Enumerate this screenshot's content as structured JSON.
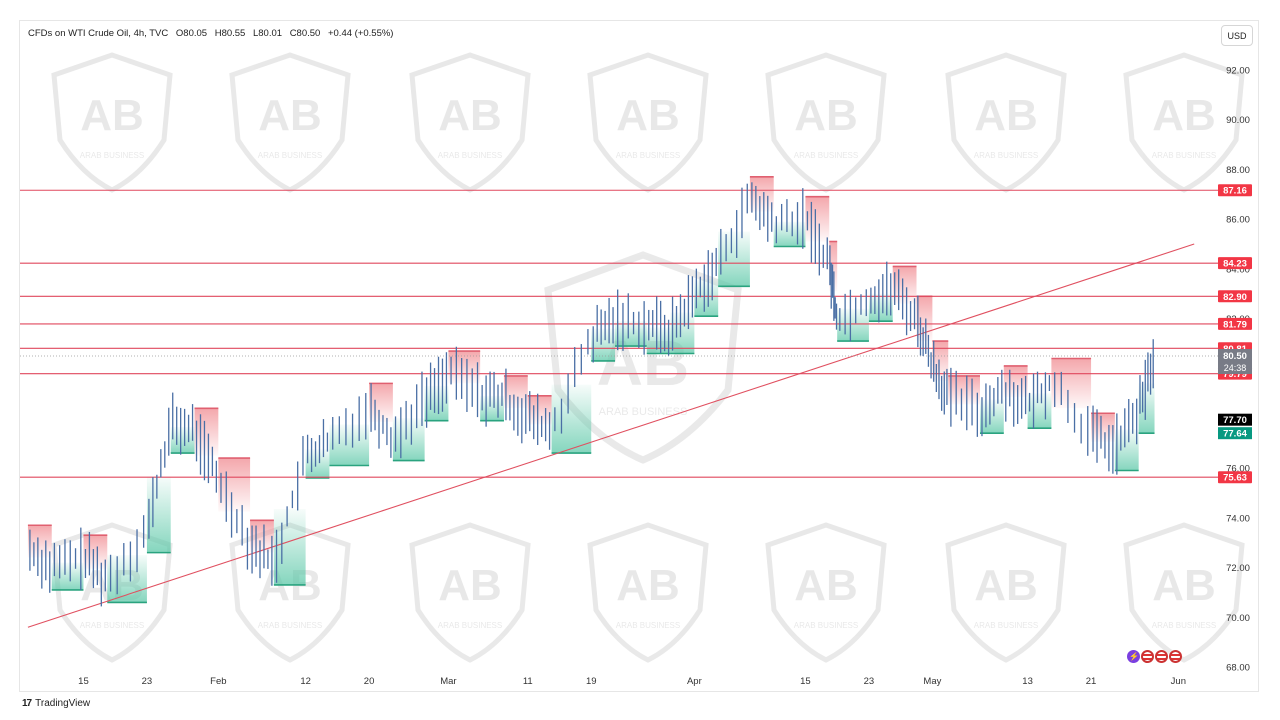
{
  "header": {
    "symbol": "CFDs on WTI Crude Oil, 4h, TVC",
    "open": "O80.05",
    "high": "H80.55",
    "low": "L80.01",
    "close": "C80.50",
    "change": "+0.44 (+0.55%)"
  },
  "currency_button": "USD",
  "brand_label": "TradingView",
  "brand_logo": "17",
  "watermark": {
    "logo_text": "ARAB BUSINESS",
    "monogram": "AB"
  },
  "colors": {
    "resistance_line": "#e0485e",
    "trendline": "#e05060",
    "bull_fill": "#5cc8a8",
    "bear_fill": "#f08a90",
    "candle": "#4a6fa5",
    "price_tag_bg": "#787b86",
    "label_red": "#f23645",
    "label_black": "#000000",
    "label_green": "#089981"
  },
  "chart_data": {
    "type": "line",
    "instrument": "CFDs on WTI Crude Oil",
    "timeframe": "4h",
    "y_axis": {
      "range": [
        67,
        94
      ],
      "ticks": [
        "92.00",
        "90.00",
        "88.00",
        "86.00",
        "84.00",
        "82.00",
        "80.00",
        "78.00",
        "76.00",
        "74.00",
        "72.00",
        "70.00",
        "68.00"
      ]
    },
    "x_axis": {
      "ticks": [
        "15",
        "23",
        "Feb",
        "12",
        "20",
        "Mar",
        "11",
        "19",
        "Apr",
        "15",
        "23",
        "May",
        "13",
        "21",
        "Jun"
      ]
    },
    "horizontal_levels": [
      {
        "value": 87.16,
        "label": "87.16"
      },
      {
        "value": 84.23,
        "label": "84.23"
      },
      {
        "value": 82.9,
        "label": "82.90"
      },
      {
        "value": 81.79,
        "label": "81.79"
      },
      {
        "value": 80.81,
        "label": "80.81"
      },
      {
        "value": 79.79,
        "label": "79.79"
      },
      {
        "value": 75.63,
        "label": "75.63"
      }
    ],
    "current_price": {
      "value": 80.5,
      "label": "80.50",
      "countdown": "24:38"
    },
    "indicator_labels": [
      {
        "value": 77.7,
        "label": "77.70",
        "style": "black"
      },
      {
        "value": 77.64,
        "label": "77.64",
        "style": "green"
      }
    ],
    "trendline": {
      "from": {
        "x": "Jan 8",
        "y": 69.6
      },
      "to": {
        "x": "Jun 3",
        "y": 85.0
      }
    },
    "price_path": {
      "x": [
        "Jan 8",
        "Jan 11",
        "Jan 15",
        "Jan 18",
        "Jan 23",
        "Jan 26",
        "Jan 29",
        "Feb 1",
        "Feb 5",
        "Feb 8",
        "Feb 12",
        "Feb 15",
        "Feb 20",
        "Feb 23",
        "Feb 27",
        "Mar 1",
        "Mar 5",
        "Mar 8",
        "Mar 11",
        "Mar 14",
        "Mar 19",
        "Mar 22",
        "Mar 26",
        "Mar 29",
        "Apr 1",
        "Apr 4",
        "Apr 8",
        "Apr 11",
        "Apr 15",
        "Apr 18",
        "Apr 19",
        "Apr 23",
        "Apr 26",
        "Apr 29",
        "May 1",
        "May 3",
        "May 7",
        "May 10",
        "May 13",
        "May 16",
        "May 21",
        "May 24",
        "May 27",
        "May 29"
      ],
      "close": [
        72.8,
        72.0,
        72.4,
        71.5,
        73.5,
        77.8,
        77.5,
        75.5,
        73.0,
        72.2,
        76.5,
        77.0,
        78.5,
        77.2,
        78.8,
        79.8,
        79.0,
        78.8,
        78.0,
        77.5,
        81.2,
        82.0,
        81.8,
        81.5,
        83.0,
        84.2,
        86.8,
        85.8,
        86.0,
        84.2,
        82.0,
        82.8,
        83.2,
        82.0,
        80.2,
        78.8,
        78.3,
        79.2,
        78.5,
        79.5,
        77.3,
        76.8,
        78.3,
        80.5
      ]
    }
  }
}
